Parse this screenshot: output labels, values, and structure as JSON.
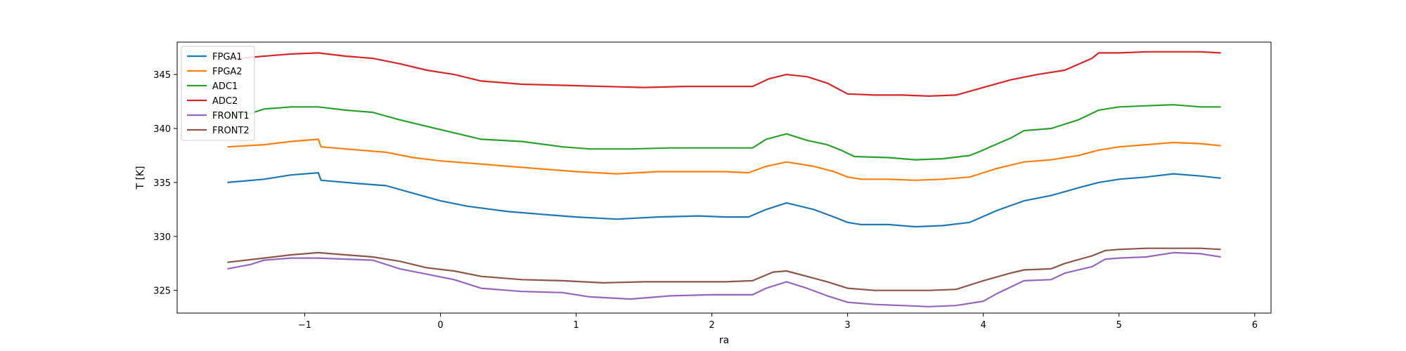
{
  "chart_data": {
    "type": "line",
    "title": "",
    "xlabel": "ra",
    "ylabel": "T [K]",
    "xlim": [
      -1.94,
      6.12
    ],
    "ylim": [
      322.9,
      348.0
    ],
    "xticks": [
      -1,
      0,
      1,
      2,
      3,
      4,
      5,
      6
    ],
    "yticks": [
      325,
      330,
      335,
      340,
      345
    ],
    "grid": false,
    "legend": "top-left",
    "series": [
      {
        "name": "FPGA1",
        "color": "#1f77b4",
        "x": [
          -1.57,
          -1.3,
          -1.1,
          -0.9,
          -0.88,
          -0.6,
          -0.4,
          -0.2,
          0,
          0.2,
          0.5,
          0.8,
          1.0,
          1.3,
          1.6,
          1.9,
          2.1,
          2.27,
          2.4,
          2.55,
          2.75,
          2.9,
          3.0,
          3.1,
          3.3,
          3.5,
          3.7,
          3.9,
          4.1,
          4.3,
          4.5,
          4.7,
          4.85,
          5.0,
          5.2,
          5.4,
          5.6,
          5.75
        ],
        "y": [
          335.0,
          335.3,
          335.7,
          335.9,
          335.2,
          334.9,
          334.7,
          334.0,
          333.3,
          332.8,
          332.3,
          332.0,
          331.8,
          331.6,
          331.8,
          331.9,
          331.8,
          331.8,
          332.5,
          333.1,
          332.5,
          331.8,
          331.3,
          331.1,
          331.1,
          330.9,
          331.0,
          331.3,
          332.4,
          333.3,
          333.8,
          334.5,
          335.0,
          335.3,
          335.5,
          335.8,
          335.6,
          335.4
        ]
      },
      {
        "name": "FPGA2",
        "color": "#ff7f0e",
        "x": [
          -1.57,
          -1.3,
          -1.1,
          -0.9,
          -0.88,
          -0.6,
          -0.4,
          -0.2,
          0,
          0.2,
          0.5,
          0.8,
          1.0,
          1.3,
          1.6,
          1.9,
          2.1,
          2.27,
          2.4,
          2.55,
          2.75,
          2.9,
          3.0,
          3.1,
          3.3,
          3.5,
          3.7,
          3.9,
          4.1,
          4.3,
          4.5,
          4.7,
          4.85,
          5.0,
          5.2,
          5.4,
          5.6,
          5.75
        ],
        "y": [
          338.3,
          338.5,
          338.8,
          339.0,
          338.3,
          338.0,
          337.8,
          337.3,
          337.0,
          336.8,
          336.5,
          336.2,
          336.0,
          335.8,
          336.0,
          336.0,
          336.0,
          335.9,
          336.5,
          336.9,
          336.5,
          336.0,
          335.5,
          335.3,
          335.3,
          335.2,
          335.3,
          335.5,
          336.3,
          336.9,
          337.1,
          337.5,
          338.0,
          338.3,
          338.5,
          338.7,
          338.6,
          338.4
        ]
      },
      {
        "name": "ADC1",
        "color": "#2ca02c",
        "x": [
          -1.57,
          -1.4,
          -1.3,
          -1.1,
          -0.9,
          -0.7,
          -0.5,
          -0.3,
          -0.1,
          0.1,
          0.3,
          0.6,
          0.9,
          1.1,
          1.4,
          1.7,
          2.0,
          2.3,
          2.4,
          2.55,
          2.7,
          2.85,
          2.95,
          3.05,
          3.3,
          3.5,
          3.7,
          3.9,
          4.0,
          4.05,
          4.2,
          4.3,
          4.5,
          4.7,
          4.85,
          5.0,
          5.2,
          5.4,
          5.6,
          5.75
        ],
        "y": [
          341.2,
          341.4,
          341.8,
          342.0,
          342.0,
          341.7,
          341.5,
          340.8,
          340.2,
          339.6,
          339.0,
          338.8,
          338.3,
          338.1,
          338.1,
          338.2,
          338.2,
          338.2,
          339.0,
          339.5,
          338.9,
          338.5,
          338.0,
          337.4,
          337.3,
          337.1,
          337.2,
          337.5,
          338.0,
          338.3,
          339.1,
          339.8,
          340.0,
          340.8,
          341.7,
          342.0,
          342.1,
          342.2,
          342.0,
          342.0
        ]
      },
      {
        "name": "ADC2",
        "color": "#d62728",
        "x": [
          -1.57,
          -1.3,
          -1.1,
          -0.9,
          -0.7,
          -0.5,
          -0.3,
          -0.1,
          0.1,
          0.3,
          0.6,
          0.9,
          1.2,
          1.5,
          1.8,
          2.1,
          2.3,
          2.42,
          2.55,
          2.7,
          2.85,
          3.0,
          3.2,
          3.4,
          3.6,
          3.8,
          4.0,
          4.2,
          4.4,
          4.6,
          4.8,
          4.85,
          5.0,
          5.2,
          5.4,
          5.6,
          5.75
        ],
        "y": [
          346.4,
          346.7,
          346.9,
          347.0,
          346.7,
          346.5,
          346.0,
          345.4,
          345.0,
          344.4,
          344.1,
          344.0,
          343.9,
          343.8,
          343.9,
          343.9,
          343.9,
          344.6,
          345.0,
          344.8,
          344.2,
          343.2,
          343.1,
          343.1,
          343.0,
          343.1,
          343.8,
          344.5,
          345.0,
          345.4,
          346.5,
          347.0,
          347.0,
          347.1,
          347.1,
          347.1,
          347.0
        ]
      },
      {
        "name": "FRONT1",
        "color": "#9467bd",
        "x": [
          -1.57,
          -1.4,
          -1.3,
          -1.1,
          -0.9,
          -0.7,
          -0.5,
          -0.3,
          -0.1,
          0.1,
          0.3,
          0.6,
          0.9,
          1.1,
          1.4,
          1.7,
          2.0,
          2.3,
          2.4,
          2.55,
          2.7,
          2.85,
          3.0,
          3.2,
          3.4,
          3.6,
          3.8,
          4.0,
          4.1,
          4.2,
          4.3,
          4.5,
          4.6,
          4.8,
          4.9,
          5.0,
          5.2,
          5.4,
          5.6,
          5.75
        ],
        "y": [
          327.0,
          327.4,
          327.8,
          328.0,
          328.0,
          327.9,
          327.8,
          327.0,
          326.5,
          326.0,
          325.2,
          324.9,
          324.8,
          324.4,
          324.2,
          324.5,
          324.6,
          324.6,
          325.2,
          325.8,
          325.2,
          324.5,
          323.9,
          323.7,
          323.6,
          323.5,
          323.6,
          324.0,
          324.7,
          325.3,
          325.9,
          326.0,
          326.6,
          327.2,
          327.9,
          328.0,
          328.1,
          328.5,
          328.4,
          328.1
        ]
      },
      {
        "name": "FRONT2",
        "color": "#8c564b",
        "x": [
          -1.57,
          -1.3,
          -1.1,
          -0.9,
          -0.7,
          -0.5,
          -0.3,
          -0.1,
          0.1,
          0.3,
          0.6,
          0.9,
          1.2,
          1.5,
          1.8,
          2.1,
          2.3,
          2.45,
          2.55,
          2.7,
          2.85,
          3.0,
          3.2,
          3.4,
          3.6,
          3.8,
          4.0,
          4.2,
          4.3,
          4.5,
          4.6,
          4.8,
          4.9,
          5.0,
          5.2,
          5.4,
          5.6,
          5.75
        ],
        "y": [
          327.6,
          328.0,
          328.3,
          328.5,
          328.3,
          328.1,
          327.7,
          327.1,
          326.8,
          326.3,
          326.0,
          325.9,
          325.7,
          325.8,
          325.8,
          325.8,
          325.9,
          326.7,
          326.8,
          326.3,
          325.8,
          325.2,
          325.0,
          325.0,
          325.0,
          325.1,
          325.9,
          326.6,
          326.9,
          327.0,
          327.5,
          328.2,
          328.7,
          328.8,
          328.9,
          328.9,
          328.9,
          328.8
        ]
      }
    ]
  }
}
